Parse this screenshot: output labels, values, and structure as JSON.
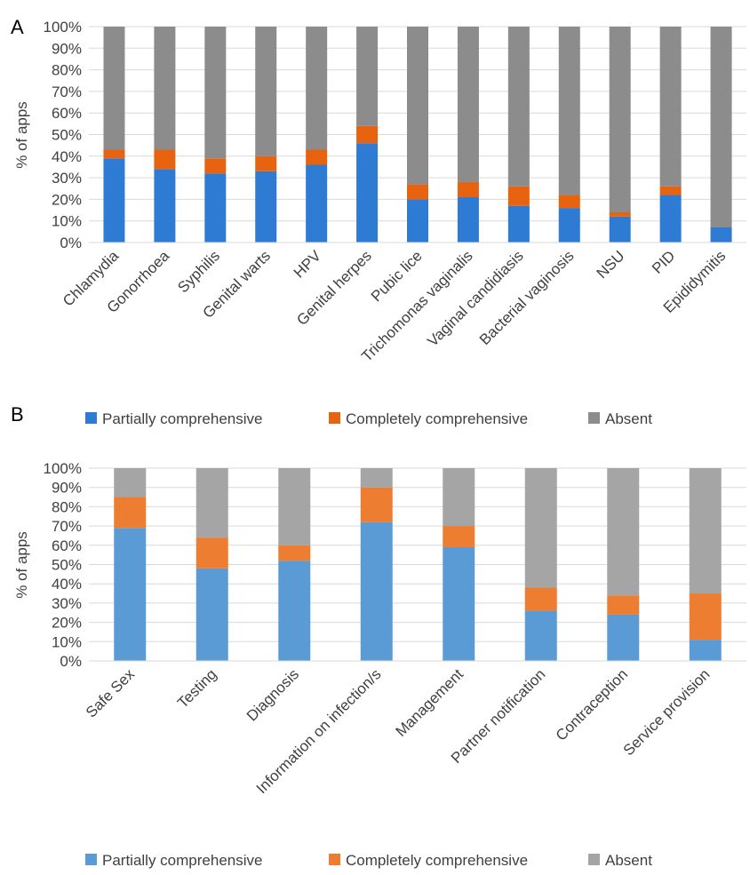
{
  "panel_a": {
    "letter": "A",
    "ylabel": "% of apps",
    "colors": {
      "partial": "#2E7BD4",
      "complete": "#E8630F",
      "absent": "#8C8C8C"
    }
  },
  "panel_b": {
    "letter": "B",
    "ylabel": "% of apps",
    "colors": {
      "partial": "#5B9BD5",
      "complete": "#ED7D31",
      "absent": "#A5A5A5"
    }
  },
  "legend_top": [
    "Partially comprehensive",
    "Completely comprehensive",
    "Absent"
  ],
  "legend_bottom": [
    "Partially comprehensive",
    "Completely comprehensive",
    "Absent"
  ],
  "chart_data": [
    {
      "type": "bar",
      "stacked": true,
      "title": "",
      "ylabel": "% of apps",
      "ylim": [
        0,
        100
      ],
      "yticks": [
        "0%",
        "10%",
        "20%",
        "30%",
        "40%",
        "50%",
        "60%",
        "70%",
        "80%",
        "90%",
        "100%"
      ],
      "grid": true,
      "categories": [
        "Chlamydia",
        "Gonorrhoea",
        "Syphilis",
        "Genital warts",
        "HPV",
        "Genital herpes",
        "Pubic lice",
        "Trichomonas vaginalis",
        "Vaginal candidiasis",
        "Bacterial vaginosis",
        "NSU",
        "PID",
        "Epididymitis"
      ],
      "series": [
        {
          "name": "Partially comprehensive",
          "values": [
            39,
            34,
            32,
            33,
            36,
            46,
            20,
            21,
            17,
            16,
            12,
            22,
            7
          ]
        },
        {
          "name": "Completely comprehensive",
          "values": [
            4,
            9,
            7,
            7,
            7,
            8,
            7,
            7,
            9,
            6,
            2,
            4,
            0
          ]
        },
        {
          "name": "Absent",
          "values": [
            57,
            57,
            61,
            60,
            57,
            46,
            73,
            72,
            74,
            78,
            86,
            74,
            93
          ]
        }
      ]
    },
    {
      "type": "bar",
      "stacked": true,
      "title": "",
      "ylabel": "% of apps",
      "ylim": [
        0,
        100
      ],
      "yticks": [
        "0%",
        "10%",
        "20%",
        "30%",
        "40%",
        "50%",
        "60%",
        "70%",
        "80%",
        "90%",
        "100%"
      ],
      "grid": true,
      "legend_position": "bottom",
      "categories": [
        "Safe Sex",
        "Testing",
        "Diagnosis",
        "Information on infection/s",
        "Management",
        "Partner notification",
        "Contraception",
        "Service provision"
      ],
      "series": [
        {
          "name": "Partially comprehensive",
          "values": [
            69,
            48,
            52,
            72,
            59,
            26,
            24,
            11
          ]
        },
        {
          "name": "Completely comprehensive",
          "values": [
            16,
            16,
            8,
            18,
            11,
            12,
            10,
            24
          ]
        },
        {
          "name": "Absent",
          "values": [
            15,
            36,
            40,
            10,
            30,
            62,
            66,
            65
          ]
        }
      ]
    }
  ]
}
